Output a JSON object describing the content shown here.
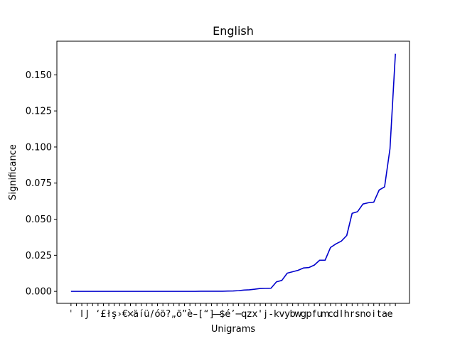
{
  "chart_data": {
    "type": "line",
    "title": "English",
    "xlabel": "Unigrams",
    "ylabel": "Significance",
    "ylim": [
      -0.0083,
      0.1733
    ],
    "grid": false,
    "legend": "none",
    "series": [
      {
        "color": "#0000cc",
        "points": [
          {
            "x": "ˈ",
            "y": 0.0
          },
          {
            "x": "",
            "y": 0.0
          },
          {
            "x": "l",
            "y": 0.0
          },
          {
            "x": "J",
            "y": 0.0
          },
          {
            "x": "",
            "y": 0.0
          },
          {
            "x": "‘",
            "y": 0.0
          },
          {
            "x": "£",
            "y": 0.0
          },
          {
            "x": "ł",
            "y": 0.0
          },
          {
            "x": "ş",
            "y": 0.0
          },
          {
            "x": "›",
            "y": 0.0
          },
          {
            "x": "€",
            "y": 0.0
          },
          {
            "x": "×",
            "y": 0.0
          },
          {
            "x": "ä",
            "y": 0.0
          },
          {
            "x": "í",
            "y": 0.0
          },
          {
            "x": "ü",
            "y": 0.0
          },
          {
            "x": "/",
            "y": 0.0
          },
          {
            "x": "ó",
            "y": 0.0
          },
          {
            "x": "ö",
            "y": 0.0
          },
          {
            "x": "?",
            "y": 0.0
          },
          {
            "x": "„",
            "y": 0.0
          },
          {
            "x": "õ",
            "y": 0.0
          },
          {
            "x": "”",
            "y": 0.0
          },
          {
            "x": "è",
            "y": 0.0
          },
          {
            "x": "–",
            "y": 0.0
          },
          {
            "x": "[",
            "y": 0.0001
          },
          {
            "x": "“",
            "y": 0.0001
          },
          {
            "x": "]",
            "y": 0.0001
          },
          {
            "x": "—",
            "y": 0.0001
          },
          {
            "x": "$",
            "y": 0.0001
          },
          {
            "x": "é",
            "y": 0.0002
          },
          {
            "x": "’",
            "y": 0.0003
          },
          {
            "x": "−",
            "y": 0.0005
          },
          {
            "x": "q",
            "y": 0.0009
          },
          {
            "x": "z",
            "y": 0.0011
          },
          {
            "x": "x",
            "y": 0.0015
          },
          {
            "x": "'",
            "y": 0.002
          },
          {
            "x": "j",
            "y": 0.0021
          },
          {
            "x": "-",
            "y": 0.0022
          },
          {
            "x": "k",
            "y": 0.0066
          },
          {
            "x": "v",
            "y": 0.0076
          },
          {
            "x": "y",
            "y": 0.0126
          },
          {
            "x": "b",
            "y": 0.0136
          },
          {
            "x": "w",
            "y": 0.0146
          },
          {
            "x": "g",
            "y": 0.0162
          },
          {
            "x": "p",
            "y": 0.0165
          },
          {
            "x": "f",
            "y": 0.0182
          },
          {
            "x": "u",
            "y": 0.0216
          },
          {
            "x": "m",
            "y": 0.0216
          },
          {
            "x": "c",
            "y": 0.0304
          },
          {
            "x": "d",
            "y": 0.0329
          },
          {
            "x": "l",
            "y": 0.0348
          },
          {
            "x": "h",
            "y": 0.0387
          },
          {
            "x": "r",
            "y": 0.0541
          },
          {
            "x": "s",
            "y": 0.0552
          },
          {
            "x": "n",
            "y": 0.0605
          },
          {
            "x": "o",
            "y": 0.0614
          },
          {
            "x": "i",
            "y": 0.0618
          },
          {
            "x": "t",
            "y": 0.0702
          },
          {
            "x": "a",
            "y": 0.0724
          },
          {
            "x": "e",
            "y": 0.0988
          },
          {
            "x": "",
            "y": 0.1646
          }
        ]
      }
    ],
    "yticks": [
      {
        "value": 0.0,
        "label": "0.000"
      },
      {
        "value": 0.025,
        "label": "0.025"
      },
      {
        "value": 0.05,
        "label": "0.050"
      },
      {
        "value": 0.075,
        "label": "0.075"
      },
      {
        "value": 0.1,
        "label": "0.100"
      },
      {
        "value": 0.125,
        "label": "0.125"
      },
      {
        "value": 0.15,
        "label": "0.150"
      }
    ]
  }
}
